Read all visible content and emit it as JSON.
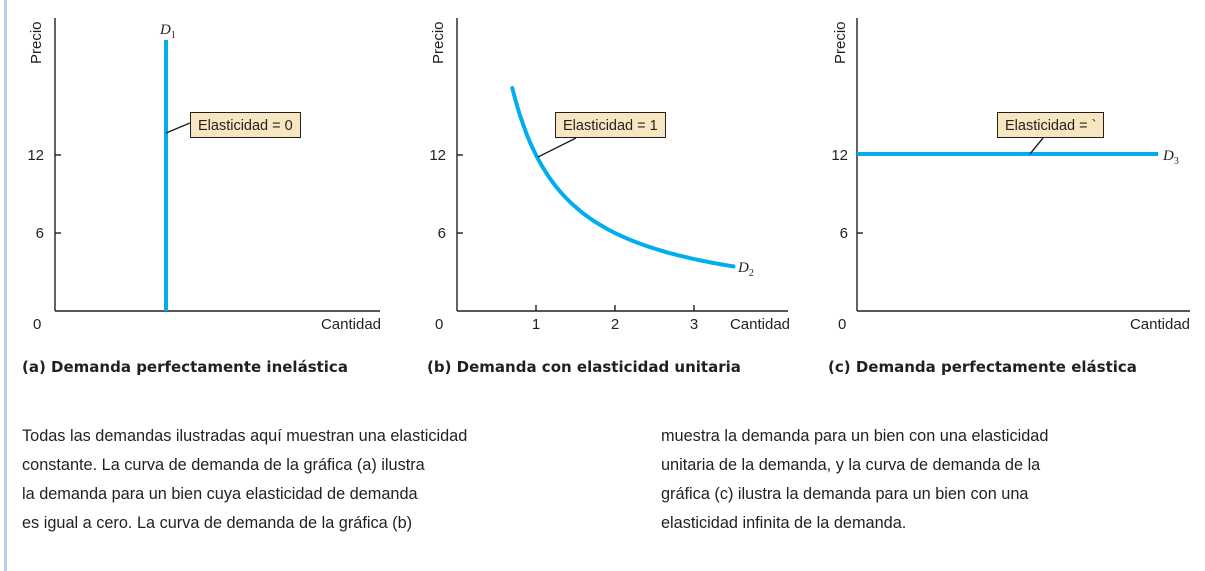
{
  "colors": {
    "curve": "#00aeef",
    "axis": "#231f20",
    "callout_bg": "#f7e7c1",
    "left_rule": "#b9cfe6"
  },
  "chart_data": [
    {
      "type": "line",
      "ylabel": "Precio",
      "xlabel": "Cantidad",
      "yticks": [
        "12",
        "6"
      ],
      "origin_label": "0",
      "curve_label": "D",
      "curve_sub": "1",
      "callout": "Elasticidad = 0",
      "caption": "(a) Demanda perfectamente inelástica",
      "series": [
        {
          "values": "vertical demand curve at a fixed quantity"
        }
      ]
    },
    {
      "type": "line",
      "ylabel": "Precio",
      "xlabel": "Cantidad",
      "yticks": [
        "12",
        "6"
      ],
      "xticks": [
        "1",
        "2",
        "3"
      ],
      "origin_label": "0",
      "curve_label": "D",
      "curve_sub": "2",
      "callout": "Elasticidad = 1",
      "caption": "(b) Demanda con elasticidad unitaria",
      "x": [
        0.7,
        1,
        1.5,
        2,
        2.5,
        3,
        3.5
      ],
      "y": [
        17.1,
        12,
        8,
        6,
        4.8,
        4,
        3.43
      ]
    },
    {
      "type": "line",
      "ylabel": "Precio",
      "xlabel": "Cantidad",
      "yticks": [
        "12",
        "6"
      ],
      "origin_label": "0",
      "curve_label": "D",
      "curve_sub": "3",
      "callout": "Elasticidad = `",
      "caption": "(c) Demanda perfectamente elástica",
      "y_constant": 12
    }
  ],
  "text": {
    "col1": [
      "Todas las demandas ilustradas aquí muestran una elasticidad",
      "constante. La curva de demanda de la gráfica (a) ilustra",
      "la demanda para un bien cuya elasticidad de demanda",
      "es igual a cero. La curva de demanda de la gráfica (b)"
    ],
    "col2": [
      "muestra la demanda para un bien con una elasticidad",
      "unitaria de la demanda, y la curva de demanda de la",
      "gráfica (c) ilustra la demanda para un bien con una",
      "elasticidad infinita de la demanda."
    ]
  }
}
